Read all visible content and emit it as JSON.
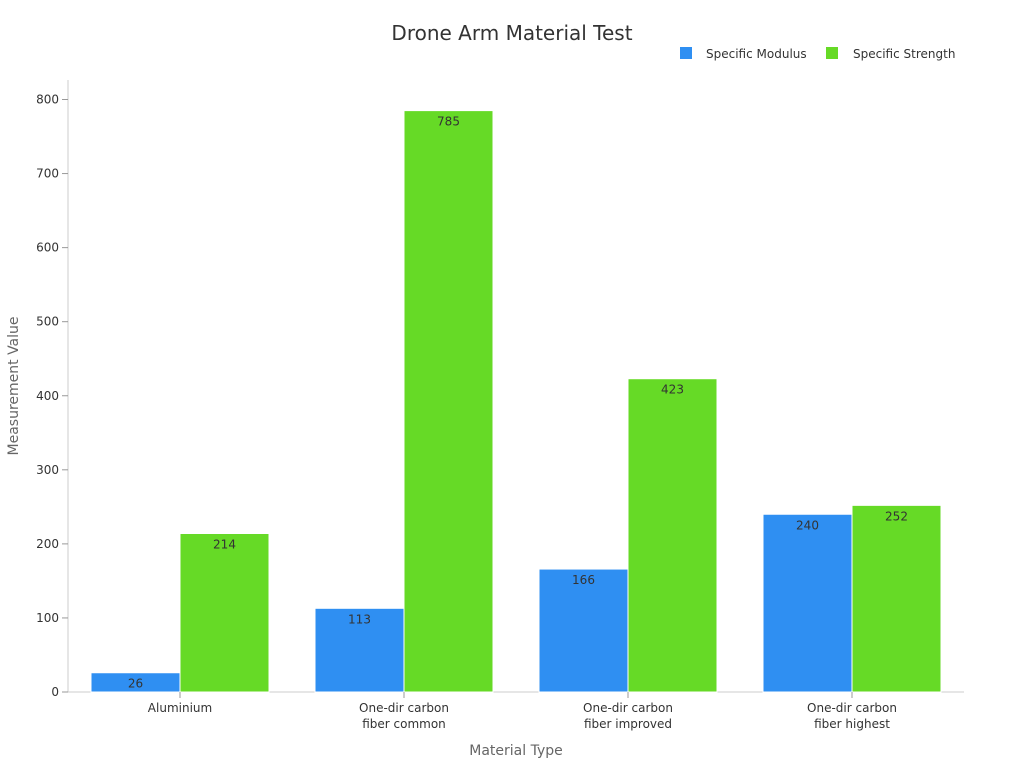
{
  "chart_data": {
    "type": "bar",
    "title": "Drone Arm Material Test",
    "xlabel": "Material Type",
    "ylabel": "Measurement Value",
    "categories": [
      [
        "Aluminium"
      ],
      [
        "One-dir carbon",
        "fiber common"
      ],
      [
        "One-dir carbon",
        "fiber improved"
      ],
      [
        "One-dir carbon",
        "fiber highest"
      ]
    ],
    "series": [
      {
        "name": "Specific Modulus",
        "color": "#2f8ff2",
        "values": [
          26,
          113,
          166,
          240
        ]
      },
      {
        "name": "Specific Strength",
        "color": "#66da26",
        "values": [
          214,
          785,
          423,
          252
        ]
      }
    ],
    "ylim": [
      0,
      800
    ],
    "yticks": [
      0,
      100,
      200,
      300,
      400,
      500,
      600,
      700,
      800
    ],
    "grid": false,
    "legend_position": "top-right"
  }
}
